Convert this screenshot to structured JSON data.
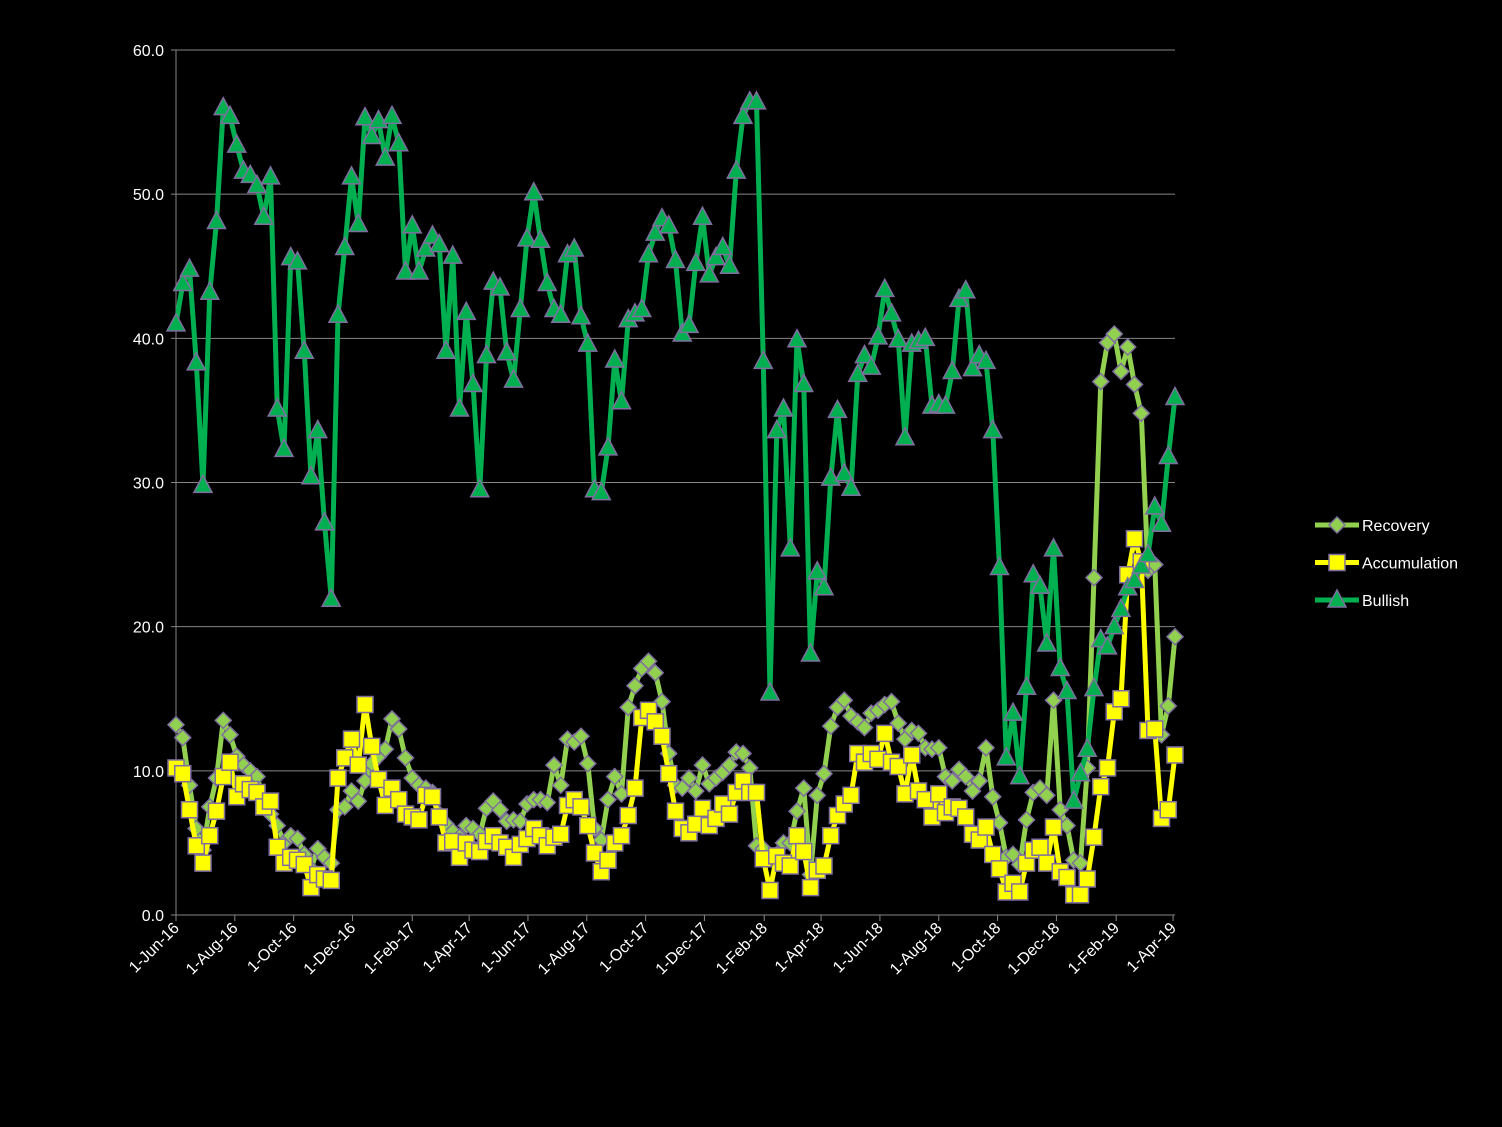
{
  "chart_data": {
    "type": "line",
    "x": [
      "2016-06-01",
      "2016-06-08",
      "2016-06-15",
      "2016-06-22",
      "2016-06-29",
      "2016-07-06",
      "2016-07-13",
      "2016-07-20",
      "2016-07-27",
      "2016-08-03",
      "2016-08-10",
      "2016-08-17",
      "2016-08-24",
      "2016-08-31",
      "2016-09-07",
      "2016-09-14",
      "2016-09-21",
      "2016-09-28",
      "2016-10-05",
      "2016-10-12",
      "2016-10-19",
      "2016-10-26",
      "2016-11-02",
      "2016-11-09",
      "2016-11-16",
      "2016-11-23",
      "2016-11-30",
      "2016-12-07",
      "2016-12-14",
      "2016-12-21",
      "2016-12-28",
      "2017-01-04",
      "2017-01-11",
      "2017-01-18",
      "2017-01-25",
      "2017-02-01",
      "2017-02-08",
      "2017-02-15",
      "2017-02-22",
      "2017-03-01",
      "2017-03-08",
      "2017-03-15",
      "2017-03-22",
      "2017-03-29",
      "2017-04-05",
      "2017-04-12",
      "2017-04-19",
      "2017-04-26",
      "2017-05-03",
      "2017-05-10",
      "2017-05-17",
      "2017-05-24",
      "2017-05-31",
      "2017-06-07",
      "2017-06-14",
      "2017-06-21",
      "2017-06-28",
      "2017-07-05",
      "2017-07-12",
      "2017-07-19",
      "2017-07-26",
      "2017-08-02",
      "2017-08-09",
      "2017-08-16",
      "2017-08-23",
      "2017-08-30",
      "2017-09-06",
      "2017-09-13",
      "2017-09-20",
      "2017-09-27",
      "2017-10-04",
      "2017-10-11",
      "2017-10-18",
      "2017-10-25",
      "2017-11-01",
      "2017-11-08",
      "2017-11-15",
      "2017-11-22",
      "2017-11-29",
      "2017-12-06",
      "2017-12-13",
      "2017-12-20",
      "2017-12-27",
      "2018-01-03",
      "2018-01-10",
      "2018-01-17",
      "2018-01-24",
      "2018-01-31",
      "2018-02-07",
      "2018-02-14",
      "2018-02-21",
      "2018-02-28",
      "2018-03-07",
      "2018-03-14",
      "2018-03-21",
      "2018-03-28",
      "2018-04-04",
      "2018-04-11",
      "2018-04-18",
      "2018-04-25",
      "2018-05-02",
      "2018-05-09",
      "2018-05-16",
      "2018-05-23",
      "2018-05-30",
      "2018-06-06",
      "2018-06-13",
      "2018-06-20",
      "2018-06-27",
      "2018-07-04",
      "2018-07-11",
      "2018-07-18",
      "2018-07-25",
      "2018-08-01",
      "2018-08-08",
      "2018-08-15",
      "2018-08-22",
      "2018-08-29",
      "2018-09-05",
      "2018-09-12",
      "2018-09-19",
      "2018-09-26",
      "2018-10-03",
      "2018-10-10",
      "2018-10-17",
      "2018-10-24",
      "2018-10-31",
      "2018-11-07",
      "2018-11-14",
      "2018-11-21",
      "2018-11-28",
      "2018-12-05",
      "2018-12-12",
      "2018-12-19",
      "2018-12-26",
      "2019-01-02",
      "2019-01-09",
      "2019-01-16",
      "2019-01-23",
      "2019-01-30",
      "2019-02-06",
      "2019-02-13",
      "2019-02-20",
      "2019-02-27",
      "2019-03-06",
      "2019-03-13",
      "2019-03-20",
      "2019-03-27",
      "2019-04-03"
    ],
    "series": [
      {
        "name": "Recovery",
        "color": "#92d050",
        "marker": "diamond",
        "values": [
          13.2,
          12.3,
          9.0,
          6.0,
          4.5,
          7.5,
          9.5,
          13.5,
          12.5,
          11.0,
          10.4,
          10.0,
          9.6,
          8.0,
          7.0,
          6.2,
          5.0,
          5.5,
          5.3,
          4.2,
          3.2,
          4.6,
          4.0,
          3.6,
          7.3,
          7.5,
          8.6,
          7.9,
          9.3,
          10.5,
          11.0,
          11.5,
          13.6,
          12.9,
          10.9,
          9.5,
          9.0,
          8.8,
          8.5,
          7.0,
          6.3,
          5.8,
          5.4,
          6.2,
          6.0,
          5.6,
          7.4,
          7.9,
          7.3,
          6.5,
          6.6,
          6.5,
          7.7,
          8.0,
          8.0,
          7.8,
          10.4,
          9.0,
          12.2,
          12.0,
          12.4,
          10.5,
          6.0,
          5.2,
          8.0,
          9.6,
          8.4,
          14.4,
          15.9,
          17.1,
          17.6,
          16.8,
          14.8,
          11.2,
          9.0,
          8.8,
          9.5,
          8.6,
          10.4,
          9.1,
          9.5,
          9.9,
          10.4,
          11.3,
          11.2,
          10.2,
          4.8,
          4.6,
          4.0,
          4.2,
          5.0,
          5.0,
          7.2,
          8.8,
          2.8,
          8.3,
          9.8,
          13.1,
          14.4,
          14.9,
          13.8,
          13.4,
          13.0,
          14.0,
          14.2,
          14.6,
          14.8,
          13.3,
          12.2,
          12.8,
          12.6,
          11.6,
          11.5,
          11.6,
          9.6,
          9.3,
          10.1,
          9.6,
          8.6,
          9.3,
          11.6,
          8.2,
          6.4,
          4.0,
          4.2,
          3.5,
          6.6,
          8.5,
          8.8,
          8.3,
          14.9,
          7.3,
          6.2,
          3.8,
          3.6,
          10.2,
          23.4,
          37.0,
          39.7,
          40.3,
          37.7,
          39.4,
          36.8,
          34.8,
          23.9,
          24.3,
          12.5,
          14.5,
          19.3
        ]
      },
      {
        "name": "Accumulation",
        "color": "#ffff00",
        "marker": "square",
        "values": [
          10.2,
          9.8,
          7.3,
          4.8,
          3.6,
          5.5,
          7.2,
          9.6,
          10.6,
          8.2,
          9.1,
          8.7,
          8.5,
          7.5,
          7.9,
          4.7,
          3.6,
          4.0,
          3.8,
          3.5,
          1.9,
          2.8,
          2.5,
          2.4,
          9.5,
          10.9,
          12.2,
          10.4,
          14.6,
          11.7,
          9.4,
          7.6,
          8.8,
          8.0,
          7.0,
          6.8,
          6.6,
          8.3,
          8.2,
          6.8,
          5.0,
          5.1,
          4.0,
          5.0,
          4.5,
          4.4,
          5.1,
          5.5,
          5.0,
          4.7,
          4.0,
          4.9,
          5.3,
          6.0,
          5.5,
          4.8,
          5.4,
          5.6,
          7.6,
          8.0,
          7.5,
          6.2,
          4.3,
          3.0,
          3.8,
          5.0,
          5.5,
          6.9,
          8.8,
          13.7,
          14.2,
          13.4,
          12.4,
          9.8,
          7.2,
          6.0,
          5.7,
          6.3,
          7.4,
          6.2,
          6.7,
          7.7,
          7.0,
          8.5,
          9.3,
          8.5,
          8.5,
          3.9,
          1.7,
          4.1,
          3.6,
          3.4,
          5.5,
          4.4,
          1.9,
          3.1,
          3.4,
          5.5,
          6.9,
          7.7,
          8.3,
          11.2,
          10.6,
          11.2,
          10.8,
          12.6,
          10.6,
          10.3,
          8.4,
          11.1,
          8.6,
          8.0,
          6.8,
          8.4,
          7.1,
          7.5,
          7.4,
          6.8,
          5.6,
          5.2,
          6.1,
          4.2,
          3.2,
          1.6,
          2.2,
          1.6,
          3.6,
          4.5,
          4.7,
          3.6,
          6.1,
          3.0,
          2.6,
          1.4,
          1.4,
          2.5,
          5.4,
          8.9,
          10.2,
          14.1,
          15.0,
          23.6,
          26.1,
          24.5,
          12.8,
          12.9,
          6.7,
          7.3,
          11.1
        ]
      },
      {
        "name": "Bullish",
        "color": "#00b050",
        "marker": "triangle",
        "values": [
          41.0,
          43.8,
          44.8,
          38.3,
          29.8,
          43.2,
          48.1,
          56.0,
          55.4,
          53.4,
          51.6,
          51.3,
          50.6,
          48.4,
          51.2,
          35.1,
          32.3,
          45.6,
          45.3,
          39.1,
          30.4,
          33.6,
          27.2,
          21.9,
          41.6,
          46.3,
          51.2,
          47.9,
          55.3,
          54.0,
          55.1,
          52.5,
          55.4,
          53.5,
          44.6,
          47.8,
          44.6,
          46.2,
          47.1,
          46.5,
          39.1,
          45.7,
          35.1,
          41.8,
          36.8,
          29.5,
          38.8,
          43.9,
          43.5,
          39.0,
          37.1,
          42.0,
          46.9,
          50.1,
          46.8,
          43.8,
          42.0,
          41.6,
          45.8,
          46.2,
          41.5,
          39.6,
          29.5,
          29.3,
          32.4,
          38.5,
          35.6,
          41.3,
          41.7,
          42.0,
          45.8,
          47.3,
          48.3,
          47.8,
          45.4,
          40.3,
          40.9,
          45.2,
          48.4,
          44.4,
          45.6,
          46.3,
          45.0,
          51.6,
          55.4,
          56.4,
          56.4,
          38.4,
          15.4,
          33.6,
          35.1,
          25.4,
          39.9,
          36.8,
          18.1,
          23.8,
          22.7,
          30.3,
          35.0,
          30.6,
          29.6,
          37.5,
          38.8,
          38.0,
          40.1,
          43.4,
          41.7,
          39.9,
          33.1,
          39.6,
          39.8,
          40.0,
          35.3,
          35.4,
          35.3,
          37.7,
          42.7,
          43.3,
          37.9,
          38.8,
          38.4,
          33.6,
          24.1,
          10.9,
          14.0,
          9.6,
          15.8,
          23.6,
          22.8,
          18.8,
          25.4,
          17.1,
          15.5,
          7.9,
          9.8,
          11.5,
          15.7,
          19.1,
          18.6,
          20.0,
          21.2,
          22.7,
          23.2,
          24.2,
          25.0,
          28.3,
          27.1,
          31.8,
          35.9
        ]
      }
    ],
    "xlim": [
      "2016-06-01",
      "2019-04-03"
    ],
    "xticks": [
      {
        "value": "2016-06-01",
        "label": "1-Jun-16"
      },
      {
        "value": "2016-08-01",
        "label": "1-Aug-16"
      },
      {
        "value": "2016-10-01",
        "label": "1-Oct-16"
      },
      {
        "value": "2016-12-01",
        "label": "1-Dec-16"
      },
      {
        "value": "2017-02-01",
        "label": "1-Feb-17"
      },
      {
        "value": "2017-04-01",
        "label": "1-Apr-17"
      },
      {
        "value": "2017-06-01",
        "label": "1-Jun-17"
      },
      {
        "value": "2017-08-01",
        "label": "1-Aug-17"
      },
      {
        "value": "2017-10-01",
        "label": "1-Oct-17"
      },
      {
        "value": "2017-12-01",
        "label": "1-Dec-17"
      },
      {
        "value": "2018-02-01",
        "label": "1-Feb-18"
      },
      {
        "value": "2018-04-01",
        "label": "1-Apr-18"
      },
      {
        "value": "2018-06-01",
        "label": "1-Jun-18"
      },
      {
        "value": "2018-08-01",
        "label": "1-Aug-18"
      },
      {
        "value": "2018-10-01",
        "label": "1-Oct-18"
      },
      {
        "value": "2018-12-01",
        "label": "1-Dec-18"
      },
      {
        "value": "2019-02-01",
        "label": "1-Feb-19"
      },
      {
        "value": "2019-04-01",
        "label": "1-Apr-19"
      }
    ],
    "ylim": [
      0,
      60
    ],
    "yticks": [
      {
        "value": 0,
        "label": "0.0"
      },
      {
        "value": 10,
        "label": "10.0"
      },
      {
        "value": 20,
        "label": "20.0"
      },
      {
        "value": 30,
        "label": "30.0"
      },
      {
        "value": 40,
        "label": "40.0"
      },
      {
        "value": 50,
        "label": "50.0"
      },
      {
        "value": 60,
        "label": "60.0"
      }
    ],
    "grid": true,
    "legend": "right"
  }
}
